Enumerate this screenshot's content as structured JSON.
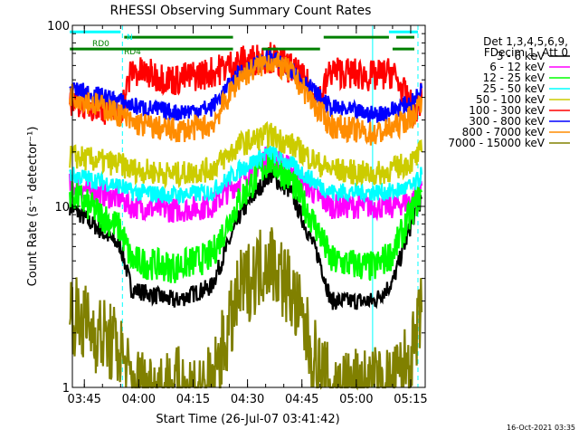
{
  "chart_data": {
    "type": "line",
    "title": "RHESSI Observing Summary Count Rates",
    "xlabel": "Start Time (26-Jul-07 03:41:42)",
    "ylabel": "Count Rate (s⁻¹ detector⁻¹)",
    "yscale": "log",
    "ylim": [
      1,
      100
    ],
    "xlim": [
      "03:41:42",
      "05:19:00"
    ],
    "y_ticks": [
      {
        "value": 1,
        "label": "1"
      },
      {
        "value": 10,
        "label": "10"
      },
      {
        "value": 100,
        "label": "100"
      }
    ],
    "x_ticks": [
      {
        "value": "03:45",
        "label": "03:45"
      },
      {
        "value": "04:00",
        "label": "04:00"
      },
      {
        "value": "04:15",
        "label": "04:15"
      },
      {
        "value": "04:30",
        "label": "04:30"
      },
      {
        "value": "04:45",
        "label": "04:45"
      },
      {
        "value": "05:00",
        "label": "05:00"
      },
      {
        "value": "05:15",
        "label": "05:15"
      }
    ],
    "legend_header": [
      "Det 1,3,4,5,6,9,",
      "FDecim 1, Att 0"
    ],
    "legend_position": "right",
    "series": [
      {
        "name": "3 - 6 keV",
        "color": "#000000",
        "x": [
          "03:41",
          "03:55",
          "03:58",
          "04:10",
          "04:20",
          "04:28",
          "04:36",
          "04:42",
          "04:50",
          "04:53",
          "05:05",
          "05:10",
          "05:16",
          "05:18"
        ],
        "y": [
          10,
          6,
          3.5,
          3,
          3.6,
          9,
          15,
          12,
          5,
          3,
          3,
          3.8,
          9,
          11
        ]
      },
      {
        "name": "6 - 12 keV",
        "color": "#ff00ff",
        "x": [
          "03:41",
          "03:55",
          "03:58",
          "04:10",
          "04:20",
          "04:28",
          "04:36",
          "04:42",
          "04:50",
          "04:53",
          "05:05",
          "05:10",
          "05:16",
          "05:18"
        ],
        "y": [
          13,
          11,
          10,
          9.5,
          10,
          14,
          19,
          16,
          11,
          10,
          10,
          10,
          11,
          13
        ]
      },
      {
        "name": "12 - 25 keV",
        "color": "#00ff00",
        "x": [
          "03:41",
          "03:55",
          "03:58",
          "04:10",
          "04:20",
          "04:28",
          "04:36",
          "04:42",
          "04:50",
          "04:53",
          "05:05",
          "05:10",
          "05:16",
          "05:18"
        ],
        "y": [
          12,
          7.5,
          5,
          4.6,
          5.3,
          11,
          18,
          14,
          7,
          5,
          4.6,
          5.5,
          10,
          12
        ]
      },
      {
        "name": "25 - 50 keV",
        "color": "#00ffff",
        "x": [
          "03:41",
          "03:55",
          "03:58",
          "04:10",
          "04:20",
          "04:28",
          "04:36",
          "04:42",
          "04:50",
          "04:53",
          "05:05",
          "05:10",
          "05:16",
          "05:18"
        ],
        "y": [
          15,
          13,
          12,
          11.5,
          12,
          16,
          20,
          17,
          13,
          12,
          12,
          12,
          13,
          15
        ]
      },
      {
        "name": "50 - 100 keV",
        "color": "#cccc00",
        "x": [
          "03:41",
          "03:55",
          "03:58",
          "04:10",
          "04:20",
          "04:28",
          "04:36",
          "04:42",
          "04:50",
          "04:53",
          "05:05",
          "05:10",
          "05:16",
          "05:18"
        ],
        "y": [
          19,
          17,
          16,
          15,
          16,
          22,
          25,
          22,
          17,
          16,
          15,
          16,
          18,
          20
        ]
      },
      {
        "name": "100 - 300 keV",
        "color": "#ff0000",
        "x": [
          "03:41",
          "03:55",
          "03:58",
          "04:10",
          "04:20",
          "04:28",
          "04:36",
          "04:42",
          "04:50",
          "04:53",
          "05:05",
          "05:10",
          "05:16",
          "05:18"
        ],
        "y": [
          39,
          33,
          56,
          50,
          55,
          63,
          67,
          58,
          40,
          56,
          52,
          55,
          33,
          40
        ]
      },
      {
        "name": "300 - 800 keV",
        "color": "#0000ff",
        "x": [
          "03:41",
          "03:55",
          "03:58",
          "04:10",
          "04:20",
          "04:28",
          "04:36",
          "04:42",
          "04:50",
          "04:53",
          "05:05",
          "05:10",
          "05:16",
          "05:18"
        ],
        "y": [
          45,
          38,
          36,
          33,
          35,
          55,
          66,
          58,
          40,
          35,
          32,
          34,
          38,
          45
        ]
      },
      {
        "name": "800 - 7000 keV",
        "color": "#ff8c00",
        "x": [
          "03:41",
          "03:55",
          "03:58",
          "04:10",
          "04:20",
          "04:28",
          "04:36",
          "04:42",
          "04:50",
          "04:53",
          "05:05",
          "05:10",
          "05:16",
          "05:18"
        ],
        "y": [
          42,
          32,
          29,
          26,
          28,
          52,
          64,
          55,
          33,
          28,
          25,
          27,
          32,
          40
        ]
      },
      {
        "name": "7000 - 15000 keV",
        "color": "#808000",
        "x": [
          "03:41",
          "03:55",
          "03:58",
          "04:10",
          "04:20",
          "04:28",
          "04:36",
          "04:42",
          "04:50",
          "04:53",
          "05:05",
          "05:10",
          "05:16",
          "05:18"
        ],
        "y": [
          2.6,
          1.6,
          1,
          1,
          1,
          3.4,
          5.3,
          3.4,
          1.2,
          1,
          1,
          1,
          1.6,
          2.6
        ]
      }
    ],
    "flags": [
      {
        "label": "N",
        "color": "#00ffff",
        "y": 92,
        "segments": [
          [
            "03:41",
            "03:55"
          ],
          [
            "05:09",
            "05:17"
          ]
        ]
      },
      {
        "label": "RD0",
        "color": "#008000",
        "y": 86,
        "segments": [
          [
            "03:56",
            "04:26"
          ],
          [
            "04:51",
            "05:09"
          ],
          [
            "05:11",
            "05:16"
          ]
        ]
      },
      {
        "label": "RD4",
        "color": "#008000",
        "y": 74,
        "segments": [
          [
            "03:41",
            "04:26"
          ],
          [
            "04:34",
            "04:50"
          ],
          [
            "05:10",
            "05:16"
          ]
        ]
      }
    ],
    "vlines": [
      {
        "time": "03:41:42",
        "color": "#00ffff",
        "dash": false
      },
      {
        "time": "03:55:30",
        "color": "#00ffff",
        "dash": true
      },
      {
        "time": "05:04:30",
        "color": "#00ffff",
        "dash": false
      },
      {
        "time": "05:17:00",
        "color": "#00ffff",
        "dash": true
      }
    ]
  },
  "footer": {
    "timestamp": "16-Oct-2021 03:35"
  }
}
